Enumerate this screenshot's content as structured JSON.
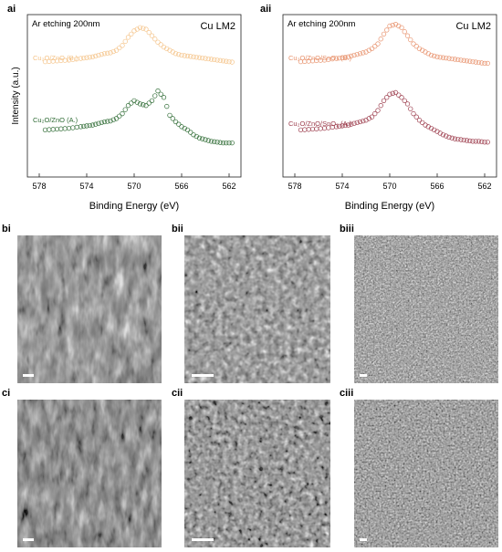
{
  "panel_labels": {
    "ai": "ai",
    "aii": "aii",
    "bi": "bi",
    "bii": "bii",
    "biii": "biii",
    "ci": "ci",
    "cii": "cii",
    "ciii": "ciii"
  },
  "chart_data": [
    {
      "type": "scatter",
      "panel": "ai",
      "annotation_left": "Ar etching 200nm",
      "annotation_right": "Cu LM2",
      "xlabel": "Binding Energy (eV)",
      "ylabel": "Intensity (a.u.)",
      "xlim": [
        579,
        561
      ],
      "x_reversed": true,
      "xticks": [
        "578",
        "574",
        "570",
        "566",
        "562"
      ],
      "xtick_values": [
        578,
        574,
        570,
        566,
        562
      ],
      "ylim": [
        0,
        100
      ],
      "series": [
        {
          "name": "Cu₂O/ZnO (B.)",
          "color": "#f5c48a",
          "x": [
            577.5,
            576.5,
            575.5,
            574.5,
            574,
            573.5,
            573,
            572.5,
            572,
            571.5,
            571,
            570.5,
            570,
            569.5,
            569,
            568.5,
            568,
            567.5,
            567,
            566.5,
            566,
            565.5,
            565,
            564.5,
            564,
            563.5,
            563,
            562.5,
            562,
            561.5
          ],
          "y": [
            71,
            71.5,
            72,
            73,
            73.5,
            74,
            75,
            76,
            76.5,
            78,
            81,
            86,
            90,
            92,
            91,
            87,
            83,
            80,
            78,
            76,
            75,
            74.5,
            74,
            73.5,
            73,
            72.5,
            72,
            71.5,
            71,
            70.5
          ]
        },
        {
          "name": "Cu₂O/ZnO (A.)",
          "color": "#2e6b34",
          "x": [
            577.5,
            576.5,
            575.5,
            574.5,
            574,
            573.5,
            573,
            572.5,
            572,
            571.5,
            571,
            570.5,
            570,
            569.5,
            569,
            568.5,
            568,
            567.5,
            567,
            566.5,
            566,
            565.5,
            565,
            564.5,
            564,
            563.5,
            563,
            562.5,
            562,
            561.5
          ],
          "y": [
            29,
            29.5,
            30,
            31,
            31.5,
            32,
            33,
            34,
            34.5,
            36,
            39,
            44,
            47,
            45,
            44,
            47,
            53,
            49,
            38,
            34,
            31,
            29,
            26,
            24,
            23,
            22,
            21.5,
            21,
            21,
            21
          ]
        }
      ]
    },
    {
      "type": "scatter",
      "panel": "aii",
      "annotation_left": "Ar etching 200nm",
      "annotation_right": "Cu LM2",
      "xlabel": "Binding Energy (eV)",
      "ylabel": "",
      "xlim": [
        579,
        561
      ],
      "x_reversed": true,
      "xticks": [
        "578",
        "574",
        "570",
        "566",
        "562"
      ],
      "xtick_values": [
        578,
        574,
        570,
        566,
        562
      ],
      "ylim": [
        0,
        100
      ],
      "series": [
        {
          "name": "Cu₂O/ZnO/SnO₂ (B.)",
          "color": "#e8936e",
          "x": [
            577.5,
            576.5,
            575.5,
            574.5,
            574,
            573.5,
            573,
            572.5,
            572,
            571.5,
            571,
            570.5,
            570,
            569.5,
            569,
            568.5,
            568,
            567.5,
            567,
            566.5,
            566,
            565.5,
            565,
            564.5,
            564,
            563.5,
            563,
            562.5,
            562,
            561.5
          ],
          "y": [
            71,
            71.5,
            72,
            73,
            73.5,
            74,
            75,
            76,
            77,
            79,
            82,
            88,
            93,
            94,
            92,
            87,
            82,
            79,
            77,
            75,
            74,
            73.5,
            73,
            72.5,
            72,
            71.5,
            71,
            70.5,
            70,
            70
          ]
        },
        {
          "name": "Cu₂O/ZnO/SnO₂ (A.)",
          "color": "#9c3c4c",
          "x": [
            577.5,
            576.5,
            575.5,
            574.5,
            574,
            573.5,
            573,
            572.5,
            572,
            571.5,
            571,
            570.5,
            570,
            569.5,
            569,
            568.5,
            568,
            567.5,
            567,
            566.5,
            566,
            565.5,
            565,
            564.5,
            564,
            563.5,
            563,
            562.5,
            562,
            561.5
          ],
          "y": [
            29,
            29.5,
            30,
            31,
            31.5,
            32,
            33,
            34,
            35,
            37,
            41,
            47,
            51,
            52,
            49,
            45,
            39,
            35,
            32,
            30,
            28,
            26,
            24.5,
            23.5,
            23,
            22.5,
            22,
            22,
            21.5,
            21.5
          ]
        }
      ]
    }
  ]
}
